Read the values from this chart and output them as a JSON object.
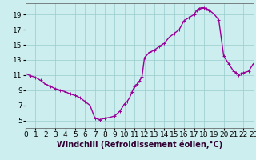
{
  "hours": [
    0,
    0.5,
    1,
    1.5,
    2,
    2.5,
    3,
    3.5,
    4,
    4.5,
    5,
    5.5,
    6,
    6.5,
    7,
    7.5,
    8,
    8.5,
    9,
    9.5,
    10,
    10.25,
    10.5,
    10.75,
    11,
    11.25,
    11.5,
    11.75,
    12,
    12.5,
    13,
    13.5,
    14,
    14.5,
    15,
    15.5,
    16,
    16.5,
    17,
    17.25,
    17.5,
    17.75,
    18,
    18.25,
    18.5,
    19,
    19.5,
    20,
    20.5,
    21,
    21.25,
    21.5,
    21.75,
    22,
    22.5,
    23
  ],
  "values": [
    11.2,
    10.9,
    10.7,
    10.3,
    9.8,
    9.5,
    9.2,
    9.0,
    8.8,
    8.5,
    8.3,
    8.0,
    7.5,
    7.0,
    5.3,
    5.1,
    5.3,
    5.4,
    5.6,
    6.2,
    7.2,
    7.5,
    8.0,
    8.8,
    9.5,
    9.8,
    10.2,
    10.8,
    13.3,
    14.0,
    14.3,
    14.8,
    15.2,
    16.0,
    16.5,
    17.0,
    18.2,
    18.6,
    19.0,
    19.5,
    19.8,
    19.9,
    19.9,
    19.8,
    19.6,
    19.1,
    18.3,
    13.5,
    12.5,
    11.5,
    11.3,
    11.0,
    11.2,
    11.3,
    11.5,
    12.5
  ],
  "line_color": "#990099",
  "marker_color": "#990099",
  "bg_color": "#cceeee",
  "grid_color": "#99cccc",
  "xlabel": "Windchill (Refroidissement éolien,°C)",
  "xlim": [
    0,
    23
  ],
  "ylim": [
    4,
    20.5
  ],
  "yticks": [
    5,
    7,
    9,
    11,
    13,
    15,
    17,
    19
  ],
  "xticks": [
    0,
    1,
    2,
    3,
    4,
    5,
    6,
    7,
    8,
    9,
    10,
    11,
    12,
    13,
    14,
    15,
    16,
    17,
    18,
    19,
    20,
    21,
    22,
    23
  ],
  "xlabel_fontsize": 7,
  "tick_fontsize": 6.5,
  "line_width": 1.0,
  "marker_size": 2.5
}
